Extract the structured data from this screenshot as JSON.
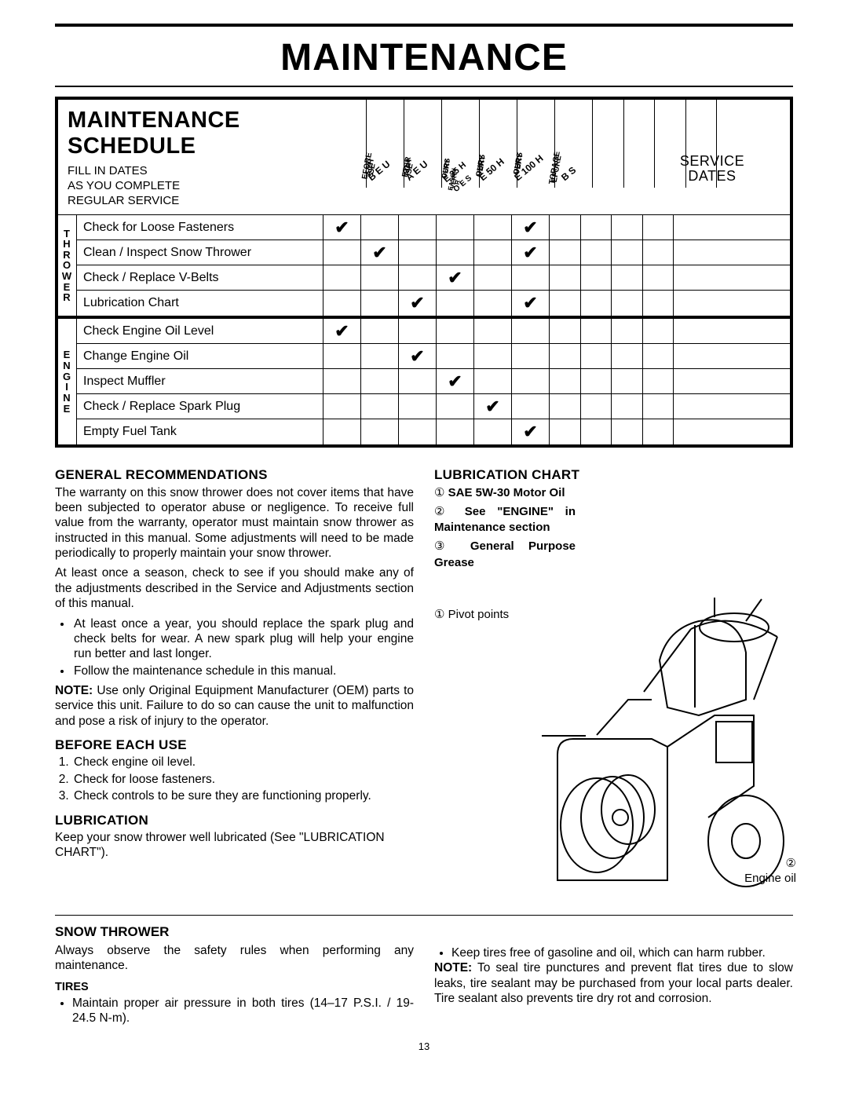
{
  "title": "MAINTENANCE",
  "page_number": "13",
  "schedule": {
    "heading": "MAINTENANCE SCHEDULE",
    "sub1": "FILL IN DATES",
    "sub2": "AS YOU COMPLETE",
    "sub3": "REGULAR SERVICE",
    "col_headers": [
      "BEFORE EACH USE",
      "AFTER EACH USE",
      "EVERY 25 HOURS OR EVERY SEASON",
      "EVERY 50 HOURS",
      "EVERY 100 HOURS",
      "BEFORE STORAGE"
    ],
    "service_dates_label": "SERVICE DATES",
    "group1_label": "THROWER",
    "group2_label": "ENGINE",
    "rows_group1": [
      {
        "task": "Check for Loose Fasteners",
        "marks": [
          true,
          false,
          false,
          false,
          false,
          true
        ]
      },
      {
        "task": "Clean / Inspect Snow Thrower",
        "marks": [
          false,
          true,
          false,
          false,
          false,
          true
        ]
      },
      {
        "task": "Check / Replace V-Belts",
        "marks": [
          false,
          false,
          false,
          true,
          false,
          false
        ]
      },
      {
        "task": "Lubrication Chart",
        "marks": [
          false,
          false,
          true,
          false,
          false,
          true
        ]
      }
    ],
    "rows_group2": [
      {
        "task": "Check Engine Oil Level",
        "marks": [
          true,
          false,
          false,
          false,
          false,
          false
        ]
      },
      {
        "task": "Change Engine Oil",
        "marks": [
          false,
          false,
          true,
          false,
          false,
          false
        ]
      },
      {
        "task": "Inspect Muffler",
        "marks": [
          false,
          false,
          false,
          true,
          false,
          false
        ]
      },
      {
        "task": "Check / Replace Spark Plug",
        "marks": [
          false,
          false,
          false,
          false,
          true,
          false
        ]
      },
      {
        "task": "Empty Fuel Tank",
        "marks": [
          false,
          false,
          false,
          false,
          false,
          true
        ]
      }
    ],
    "checkmark": "✔",
    "service_date_cols": 5
  },
  "left": {
    "h1": "GENERAL RECOMMENDATIONS",
    "p1": "The warranty on this snow thrower does not cover items that have been subjected to operator abuse or negligence. To receive full value from the warranty, operator must maintain snow thrower as instructed in this manual. Some adjustments will need to be made periodically to properly maintain your snow thrower.",
    "p2": "At least once a season, check to see if you should make any of the adjustments described in the Service and Adjustments section of this manual.",
    "bullets": [
      "At least once a year, you should replace the spark plug and check belts for wear. A new spark plug will help your engine run better and last longer.",
      "Follow the maintenance schedule in this manual."
    ],
    "note_label": "NOTE:",
    "note_body": " Use only Original Equipment Manufacturer (OEM) parts to service this unit. Failure to do so can cause the unit to malfunction and pose a risk of injury to the operator.",
    "h2": "BEFORE EACH USE",
    "ol": [
      "Check engine oil level.",
      "Check for loose fasteners.",
      "Check controls to be sure they are functioning properly."
    ],
    "h3": "LUBRICATION",
    "p3": "Keep your snow thrower well lubricated (See \"LUBRICATION CHART\")."
  },
  "right": {
    "h1": "LUBRICATION CHART",
    "items": [
      {
        "num": "①",
        "text": "SAE 5W-30 Motor Oil",
        "bold": true
      },
      {
        "num": "②",
        "text": "See \"ENGINE\" in Maintenance section",
        "bold": true
      },
      {
        "num": "③",
        "text": "General Purpose Grease",
        "bold": true
      }
    ],
    "callout_pivot_num": "①",
    "callout_pivot": "Pivot points",
    "callout_engine_num": "②",
    "callout_engine": "Engine oil"
  },
  "lower": {
    "h1": "SNOW THROWER",
    "p1": "Always observe the safety rules when performing any maintenance.",
    "h2": "TIRES",
    "b1": "Maintain proper air pressure in both tires (14–17 P.S.I. / 19-24.5 N-m).",
    "b2": "Keep tires free of gasoline and oil, which can harm rubber.",
    "note_label": "NOTE:",
    "note_body": " To seal tire punctures and prevent flat tires due to slow leaks, tire sealant may be purchased from your local parts dealer. Tire sealant also prevents tire dry rot and corrosion."
  }
}
